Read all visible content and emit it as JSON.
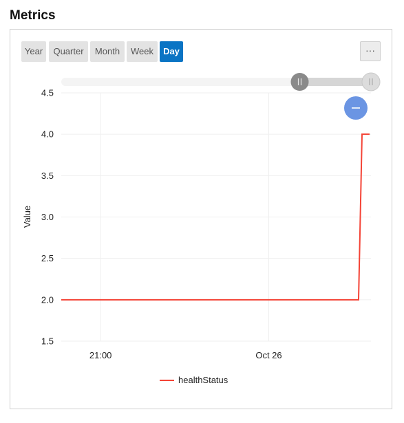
{
  "page": {
    "title": "Metrics"
  },
  "toolbar": {
    "ranges": [
      {
        "label": "Year",
        "active": false
      },
      {
        "label": "Quarter",
        "active": false
      },
      {
        "label": "Month",
        "active": false
      },
      {
        "label": "Week",
        "active": false
      },
      {
        "label": "Day",
        "active": true
      }
    ],
    "more_label": "···"
  },
  "chart_data": {
    "type": "line",
    "ylabel": "Value",
    "xlabel": "",
    "ylim": [
      1.5,
      4.5
    ],
    "yticks": [
      "1.5",
      "2.0",
      "2.5",
      "3.0",
      "3.5",
      "4.0",
      "4.5"
    ],
    "xticks": [
      "21:00",
      "Oct 26"
    ],
    "grid": true,
    "legend_placement": "bottom",
    "series": [
      {
        "name": "healthStatus",
        "color": "#f44336",
        "step": true,
        "points": [
          {
            "x": "start",
            "y": 2.0
          },
          {
            "x": "near end",
            "y": 2.0
          },
          {
            "x": "end",
            "y": 4.0
          }
        ]
      }
    ]
  },
  "zoom_slider": {
    "selected_fraction": [
      0.77,
      1.0
    ]
  },
  "icons": {
    "reset_zoom": "minus-icon",
    "handle": "grip-icon"
  },
  "colors": {
    "accent": "#0a74c4",
    "line": "#f44336",
    "reset_button": "#6b95e3"
  }
}
